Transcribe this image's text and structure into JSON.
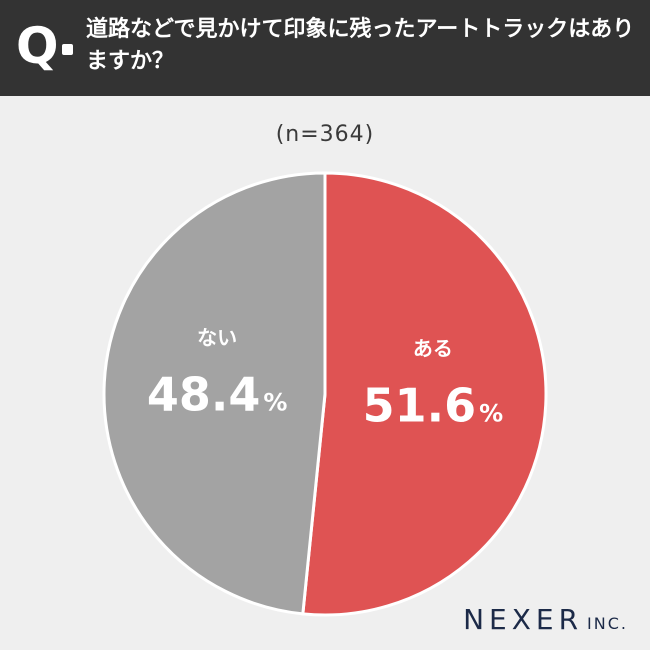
{
  "header": {
    "q_mark": "Q",
    "question": "道路などで見かけて印象に残ったアートトラックはありますか？"
  },
  "sample_label": "(n=364)",
  "colors": {
    "header_bg": "#333333",
    "yes": "#df5353",
    "no": "#a3a3a3",
    "background": "#efefef",
    "logo": "#1c2a48"
  },
  "chart_data": {
    "type": "pie",
    "slices": [
      {
        "label": "ある",
        "value": 51.6,
        "display": "51.6",
        "unit": "%",
        "color": "#df5353"
      },
      {
        "label": "ない",
        "value": 48.4,
        "display": "48.4",
        "unit": "%",
        "color": "#a3a3a3"
      }
    ],
    "start": "top",
    "direction": "clockwise"
  },
  "logo": {
    "main": "NEXER",
    "suffix": "INC."
  }
}
